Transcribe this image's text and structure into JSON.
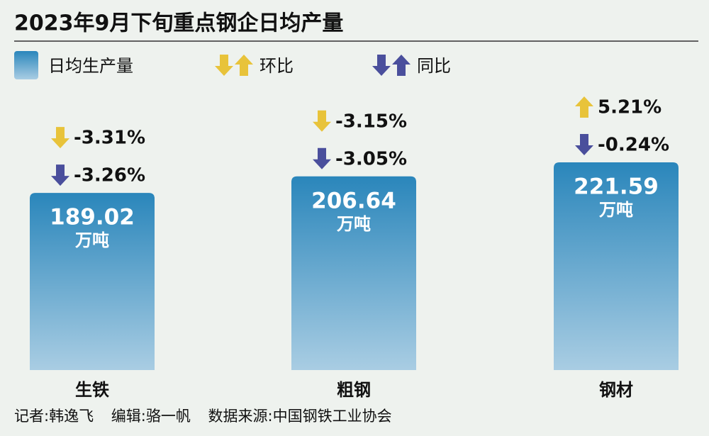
{
  "chart_data": {
    "type": "bar",
    "title": "2023年9月下旬重点钢企日均产量",
    "categories": [
      "生铁",
      "粗钢",
      "钢材"
    ],
    "values": [
      189.02,
      206.64,
      221.59
    ],
    "name": "日均生产量",
    "unit": "万吨",
    "colors": [
      "#2a86bb",
      "#a9cde3"
    ],
    "changes": [
      {
        "name": "环比",
        "color": "#e8c33a",
        "values": [
          -3.31,
          -3.15,
          5.21
        ],
        "value_labels": [
          "-3.31%",
          "-3.15%",
          "5.21%"
        ]
      },
      {
        "name": "同比",
        "color": "#4a4f9c",
        "values": [
          -3.26,
          -3.05,
          -0.24
        ],
        "value_labels": [
          "-3.26%",
          "-3.05%",
          "-0.24%"
        ]
      }
    ],
    "credits": [
      "记者:韩逸飞",
      "编辑:骆一帆",
      "数据来源:中国钢铁工业协会"
    ]
  }
}
